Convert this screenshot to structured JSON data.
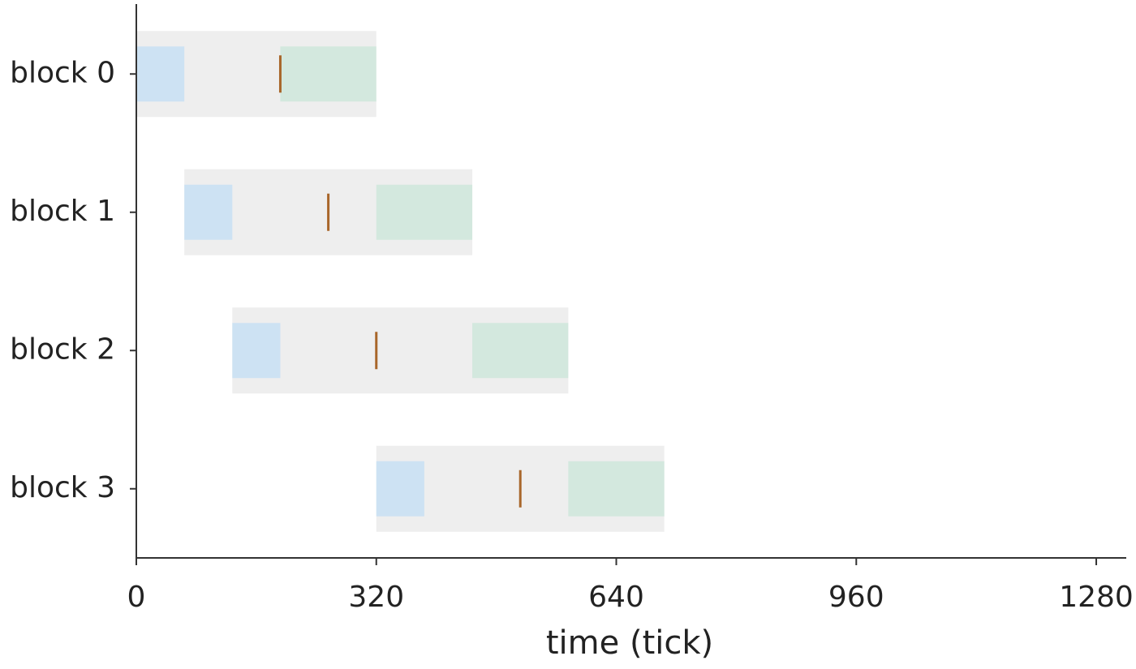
{
  "chart_data": {
    "type": "gantt",
    "x_label": "time (tick)",
    "xlim": [
      0,
      1320
    ],
    "xticks": [
      0,
      320,
      640,
      960,
      1280
    ],
    "categories": [
      "block 0",
      "block 1",
      "block 2",
      "block 3"
    ],
    "span_color": "#eeeeee",
    "first_color": "#cde2f3",
    "last_color": "#d3e8de",
    "marker_color": "#a8662a",
    "rows": [
      {
        "span": [
          0,
          320
        ],
        "first": [
          0,
          64
        ],
        "last": [
          192,
          320
        ],
        "marker": 192
      },
      {
        "span": [
          64,
          448
        ],
        "first": [
          64,
          128
        ],
        "last": [
          320,
          448
        ],
        "marker": 256
      },
      {
        "span": [
          128,
          576
        ],
        "first": [
          128,
          192
        ],
        "last": [
          448,
          576
        ],
        "marker": 320
      },
      {
        "span": [
          320,
          704
        ],
        "first": [
          320,
          384
        ],
        "last": [
          576,
          704
        ],
        "marker": 512
      }
    ]
  }
}
